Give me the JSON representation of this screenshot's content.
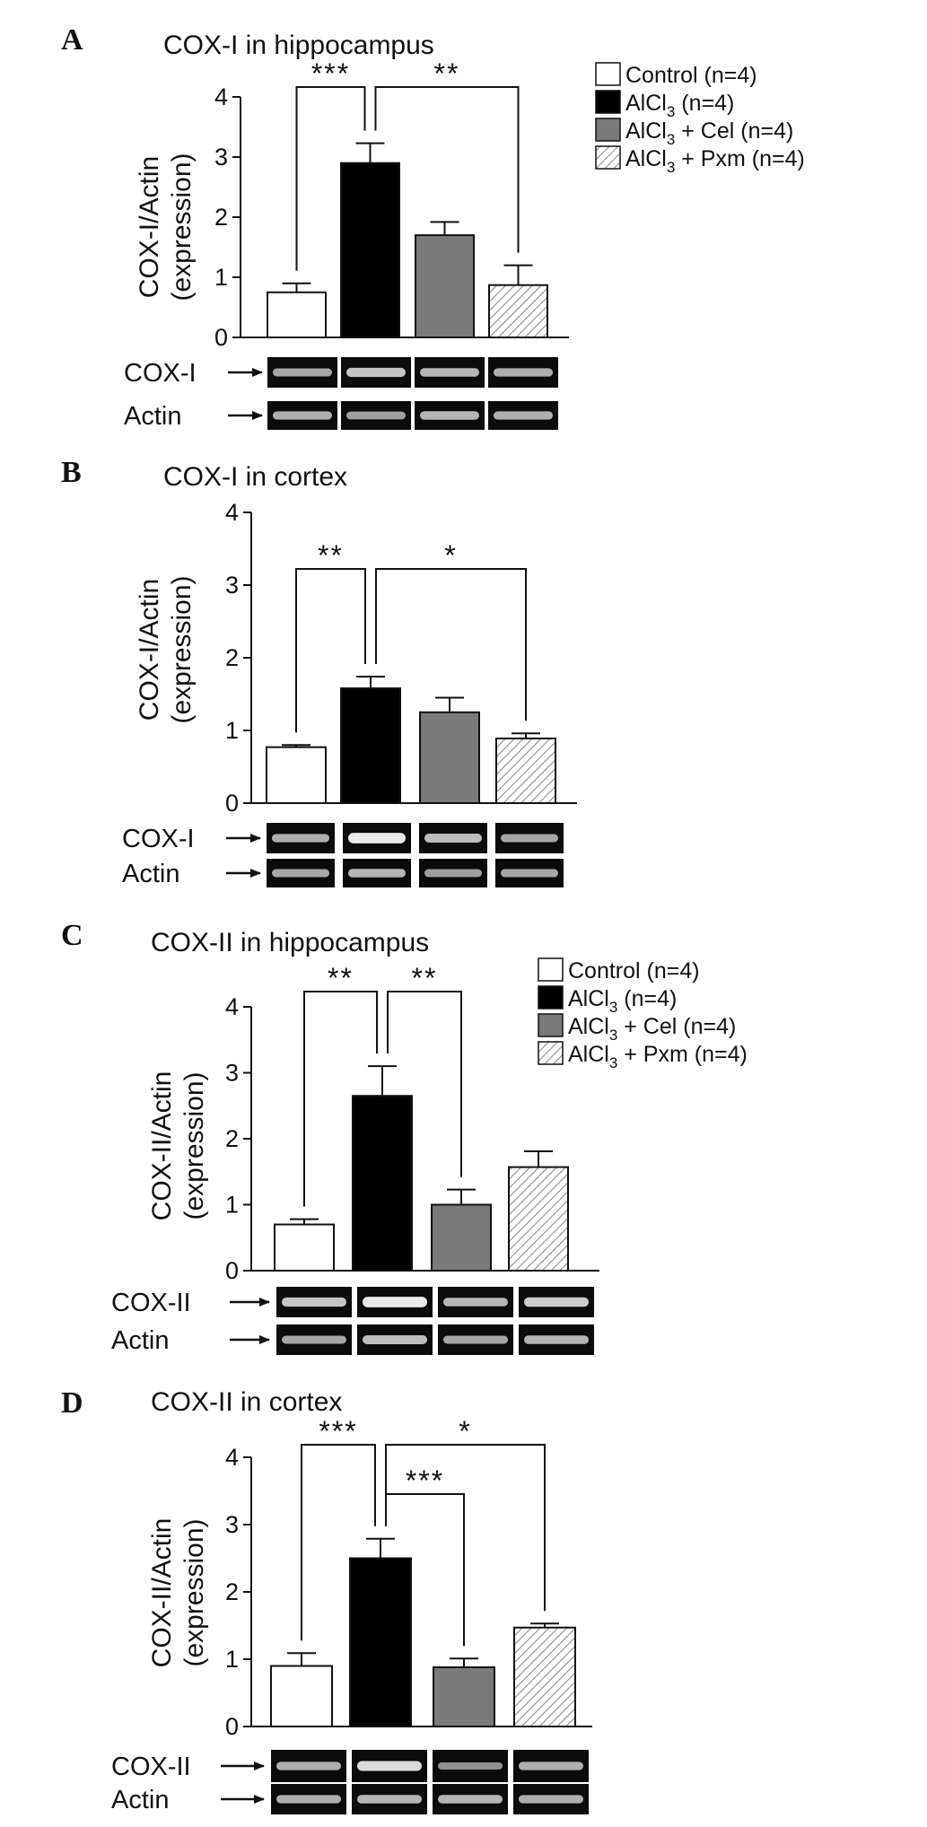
{
  "colors": {
    "control": "#ffffff",
    "alcl3": "#000000",
    "alcl3_cel": "#7a7a7a",
    "alcl3_pxm": "hatched",
    "axis": "#111111"
  },
  "legend": [
    {
      "key": "control",
      "label": "Control (n=4)"
    },
    {
      "key": "alcl3",
      "label": "AlCl",
      "sub": "3",
      "rest": " (n=4)"
    },
    {
      "key": "alcl3_cel",
      "label": "AlCl",
      "sub": "3",
      "rest": " + Cel (n=4)"
    },
    {
      "key": "alcl3_pxm",
      "label": "AlCl",
      "sub": "3",
      "rest": " + Pxm (n=4)"
    }
  ],
  "chart_data": [
    {
      "panel": "A",
      "type": "bar",
      "title": "COX-I in hippocampus",
      "ylabel_line1": "COX-I/Actin",
      "ylabel_line2": "(expression)",
      "ylim": [
        0,
        4
      ],
      "yticks": [
        "0",
        "1",
        "2",
        "3",
        "4"
      ],
      "groups": [
        "control",
        "alcl3",
        "alcl3_cel",
        "alcl3_pxm"
      ],
      "values": [
        0.75,
        2.9,
        1.7,
        0.87
      ],
      "errors": [
        0.15,
        0.33,
        0.22,
        0.33
      ],
      "significance": [
        {
          "from": 0,
          "to": 1,
          "label": "***"
        },
        {
          "from": 1,
          "to": 3,
          "label": "**"
        }
      ],
      "gel_labels": [
        "COX-I",
        "Actin"
      ],
      "legend_shown": true
    },
    {
      "panel": "B",
      "type": "bar",
      "title": "COX-I in cortex",
      "ylabel_line1": "COX-I/Actin",
      "ylabel_line2": "(expression)",
      "ylim": [
        0,
        4
      ],
      "yticks": [
        "0",
        "1",
        "2",
        "3",
        "4"
      ],
      "groups": [
        "control",
        "alcl3",
        "alcl3_cel",
        "alcl3_pxm"
      ],
      "values": [
        0.77,
        1.58,
        1.25,
        0.89
      ],
      "errors": [
        0.03,
        0.16,
        0.2,
        0.07
      ],
      "significance": [
        {
          "from": 0,
          "to": 1,
          "label": "**"
        },
        {
          "from": 1,
          "to": 3,
          "label": "*"
        }
      ],
      "gel_labels": [
        "COX-I",
        "Actin"
      ],
      "legend_shown": false
    },
    {
      "panel": "C",
      "type": "bar",
      "title": "COX-II in hippocampus",
      "ylabel_line1": "COX-II/Actin",
      "ylabel_line2": "(expression)",
      "ylim": [
        0,
        4
      ],
      "yticks": [
        "0",
        "1",
        "2",
        "3",
        "4"
      ],
      "groups": [
        "control",
        "alcl3",
        "alcl3_cel",
        "alcl3_pxm"
      ],
      "values": [
        0.7,
        2.65,
        1.0,
        1.57
      ],
      "errors": [
        0.08,
        0.45,
        0.23,
        0.24
      ],
      "significance": [
        {
          "from": 0,
          "to": 1,
          "label": "**"
        },
        {
          "from": 1,
          "to": 2,
          "label": "**"
        }
      ],
      "gel_labels": [
        "COX-II",
        "Actin"
      ],
      "legend_shown": true
    },
    {
      "panel": "D",
      "type": "bar",
      "title": "COX-II in cortex",
      "ylabel_line1": "COX-II/Actin",
      "ylabel_line2": "(expression)",
      "ylim": [
        0,
        4
      ],
      "yticks": [
        "0",
        "1",
        "2",
        "3",
        "4"
      ],
      "groups": [
        "control",
        "alcl3",
        "alcl3_cel",
        "alcl3_pxm"
      ],
      "values": [
        0.9,
        2.5,
        0.88,
        1.47
      ],
      "errors": [
        0.19,
        0.29,
        0.13,
        0.06
      ],
      "significance": [
        {
          "from": 0,
          "to": 1,
          "label": "***"
        },
        {
          "from": 1,
          "to": 3,
          "label": "*"
        },
        {
          "from": 1,
          "to": 2,
          "label": "***"
        }
      ],
      "gel_labels": [
        "COX-II",
        "Actin"
      ],
      "legend_shown": false
    }
  ]
}
